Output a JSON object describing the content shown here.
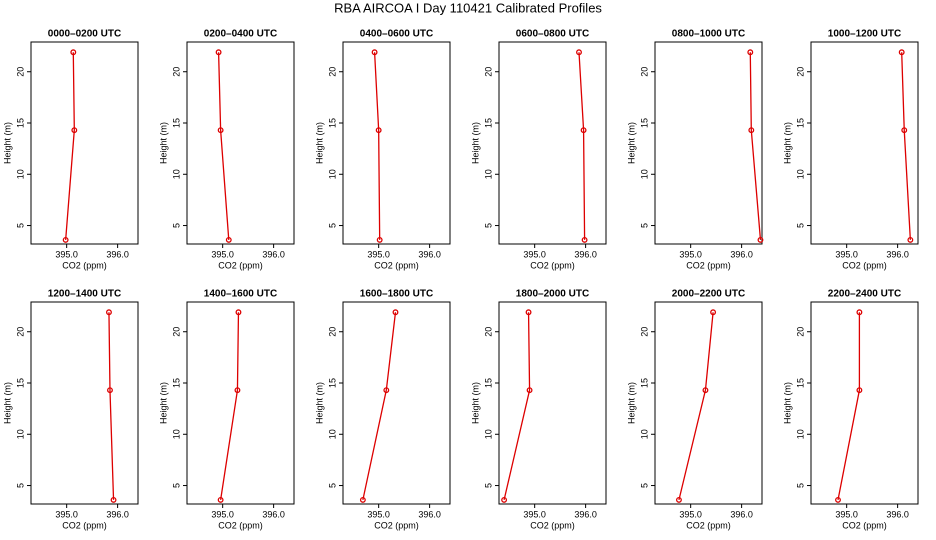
{
  "title": "RBA AIRCOA I  Day 110421  Calibrated Profiles",
  "chart_data": [
    {
      "type": "line",
      "title": "0000–0200 UTC",
      "xlabel": "CO2 (ppm)",
      "ylabel": "Height (m)",
      "color": "#dd0000",
      "x": [
        394.98,
        395.15,
        395.13
      ],
      "y": [
        3.6,
        14.3,
        21.9
      ],
      "xlim": [
        394.3,
        396.4
      ],
      "ylim": [
        3.2,
        22.9
      ],
      "xticks": [
        {
          "value": 395,
          "label": "395.0"
        },
        {
          "value": 396,
          "label": "396.0"
        }
      ],
      "yticks": [
        5,
        10,
        15,
        20
      ]
    },
    {
      "type": "line",
      "title": "0200–0400 UTC",
      "xlabel": "CO2 (ppm)",
      "ylabel": "Height (m)",
      "color": "#dd0000",
      "x": [
        395.12,
        394.96,
        394.92
      ],
      "y": [
        3.6,
        14.3,
        21.9
      ],
      "xlim": [
        394.3,
        396.4
      ],
      "ylim": [
        3.2,
        22.9
      ],
      "xticks": [
        {
          "value": 395,
          "label": "395.0"
        },
        {
          "value": 396,
          "label": "396.0"
        }
      ],
      "yticks": [
        5,
        10,
        15,
        20
      ]
    },
    {
      "type": "line",
      "title": "0400–0600 UTC",
      "xlabel": "CO2 (ppm)",
      "ylabel": "Height (m)",
      "color": "#dd0000",
      "x": [
        395.02,
        395.0,
        394.92
      ],
      "y": [
        3.6,
        14.3,
        21.9
      ],
      "xlim": [
        394.3,
        396.4
      ],
      "ylim": [
        3.2,
        22.9
      ],
      "xticks": [
        {
          "value": 395,
          "label": "395.0"
        },
        {
          "value": 396,
          "label": "396.0"
        }
      ],
      "yticks": [
        5,
        10,
        15,
        20
      ]
    },
    {
      "type": "line",
      "title": "0600–0800 UTC",
      "xlabel": "CO2 (ppm)",
      "ylabel": "Height (m)",
      "color": "#dd0000",
      "x": [
        395.98,
        395.96,
        395.87
      ],
      "y": [
        3.6,
        14.3,
        21.9
      ],
      "xlim": [
        394.3,
        396.4
      ],
      "ylim": [
        3.2,
        22.9
      ],
      "xticks": [
        {
          "value": 395,
          "label": "395.0"
        },
        {
          "value": 396,
          "label": "396.0"
        }
      ],
      "yticks": [
        5,
        10,
        15,
        20
      ]
    },
    {
      "type": "line",
      "title": "0800–1000 UTC",
      "xlabel": "CO2 (ppm)",
      "ylabel": "Height (m)",
      "color": "#dd0000",
      "x": [
        396.37,
        396.19,
        396.17
      ],
      "y": [
        3.6,
        14.3,
        21.9
      ],
      "xlim": [
        394.3,
        396.4
      ],
      "ylim": [
        3.2,
        22.9
      ],
      "xticks": [
        {
          "value": 395,
          "label": "395.0"
        },
        {
          "value": 396,
          "label": "396.0"
        }
      ],
      "yticks": [
        5,
        10,
        15,
        20
      ]
    },
    {
      "type": "line",
      "title": "1000–1200 UTC",
      "xlabel": "CO2 (ppm)",
      "ylabel": "Height (m)",
      "color": "#dd0000",
      "x": [
        396.25,
        396.13,
        396.08
      ],
      "y": [
        3.6,
        14.3,
        21.9
      ],
      "xlim": [
        394.3,
        396.4
      ],
      "ylim": [
        3.2,
        22.9
      ],
      "xticks": [
        {
          "value": 395,
          "label": "395.0"
        },
        {
          "value": 396,
          "label": "396.0"
        }
      ],
      "yticks": [
        5,
        10,
        15,
        20
      ]
    },
    {
      "type": "line",
      "title": "1200–1400 UTC",
      "xlabel": "CO2 (ppm)",
      "ylabel": "Height (m)",
      "color": "#dd0000",
      "x": [
        395.92,
        395.85,
        395.83
      ],
      "y": [
        3.6,
        14.3,
        21.9
      ],
      "xlim": [
        394.3,
        396.4
      ],
      "ylim": [
        3.2,
        22.9
      ],
      "xticks": [
        {
          "value": 395,
          "label": "395.0"
        },
        {
          "value": 396,
          "label": "396.0"
        }
      ],
      "yticks": [
        5,
        10,
        15,
        20
      ]
    },
    {
      "type": "line",
      "title": "1400–1600 UTC",
      "xlabel": "CO2 (ppm)",
      "ylabel": "Height (m)",
      "color": "#dd0000",
      "x": [
        394.96,
        395.29,
        395.31
      ],
      "y": [
        3.6,
        14.3,
        21.9
      ],
      "xlim": [
        394.3,
        396.4
      ],
      "ylim": [
        3.2,
        22.9
      ],
      "xticks": [
        {
          "value": 395,
          "label": "395.0"
        },
        {
          "value": 396,
          "label": "396.0"
        }
      ],
      "yticks": [
        5,
        10,
        15,
        20
      ]
    },
    {
      "type": "line",
      "title": "1600–1800 UTC",
      "xlabel": "CO2 (ppm)",
      "ylabel": "Height (m)",
      "color": "#dd0000",
      "x": [
        394.69,
        395.15,
        395.33
      ],
      "y": [
        3.6,
        14.3,
        21.9
      ],
      "xlim": [
        394.3,
        396.4
      ],
      "ylim": [
        3.2,
        22.9
      ],
      "xticks": [
        {
          "value": 395,
          "label": "395.0"
        },
        {
          "value": 396,
          "label": "396.0"
        }
      ],
      "yticks": [
        5,
        10,
        15,
        20
      ]
    },
    {
      "type": "line",
      "title": "1800–2000 UTC",
      "xlabel": "CO2 (ppm)",
      "ylabel": "Height (m)",
      "color": "#dd0000",
      "x": [
        394.4,
        394.9,
        394.88
      ],
      "y": [
        3.6,
        14.3,
        21.9
      ],
      "xlim": [
        394.3,
        396.4
      ],
      "ylim": [
        3.2,
        22.9
      ],
      "xticks": [
        {
          "value": 395,
          "label": "395.0"
        },
        {
          "value": 396,
          "label": "396.0"
        }
      ],
      "yticks": [
        5,
        10,
        15,
        20
      ]
    },
    {
      "type": "line",
      "title": "2000–2200 UTC",
      "xlabel": "CO2 (ppm)",
      "ylabel": "Height (m)",
      "color": "#dd0000",
      "x": [
        394.77,
        395.29,
        395.44
      ],
      "y": [
        3.6,
        14.3,
        21.9
      ],
      "xlim": [
        394.3,
        396.4
      ],
      "ylim": [
        3.2,
        22.9
      ],
      "xticks": [
        {
          "value": 395,
          "label": "395.0"
        },
        {
          "value": 396,
          "label": "396.0"
        }
      ],
      "yticks": [
        5,
        10,
        15,
        20
      ]
    },
    {
      "type": "line",
      "title": "2200–2400 UTC",
      "xlabel": "CO2 (ppm)",
      "ylabel": "Height (m)",
      "color": "#dd0000",
      "x": [
        394.83,
        395.25,
        395.25
      ],
      "y": [
        3.6,
        14.3,
        21.9
      ],
      "xlim": [
        394.3,
        396.4
      ],
      "ylim": [
        3.2,
        22.9
      ],
      "xticks": [
        {
          "value": 395,
          "label": "395.0"
        },
        {
          "value": 396,
          "label": "396.0"
        }
      ],
      "yticks": [
        5,
        10,
        15,
        20
      ]
    }
  ]
}
